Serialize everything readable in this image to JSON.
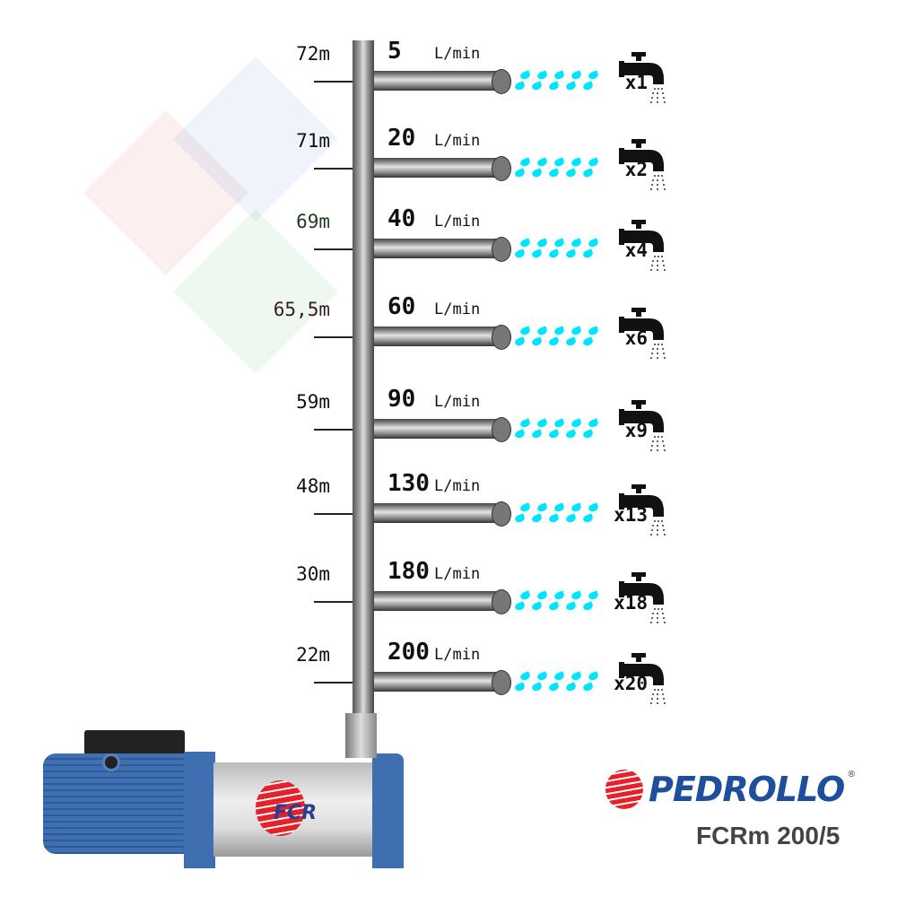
{
  "colors": {
    "water": "#00e5ff",
    "pipe": "#999999",
    "brand_blue": "#1e4f9c",
    "brand_red": "#e8202a",
    "pump_blue": "#3f6fb0"
  },
  "unit": "L/min",
  "rows": [
    {
      "height": "72m",
      "flow": "5",
      "taps": "x1",
      "height_color": "#111111"
    },
    {
      "height": "71m",
      "flow": "20",
      "taps": "x2",
      "height_color": "#111111"
    },
    {
      "height": "69m",
      "flow": "40",
      "taps": "x4",
      "height_color": "#1d3a1d"
    },
    {
      "height": "65,5m",
      "flow": "60",
      "taps": "x6",
      "height_color": "#3a1a22"
    },
    {
      "height": "59m",
      "flow": "90",
      "taps": "x9",
      "height_color": "#111111"
    },
    {
      "height": "48m",
      "flow": "130",
      "taps": "x13",
      "height_color": "#111111"
    },
    {
      "height": "30m",
      "flow": "180",
      "taps": "x18",
      "height_color": "#111111"
    },
    {
      "height": "22m",
      "flow": "200",
      "taps": "x20",
      "height_color": "#111111"
    }
  ],
  "pump": {
    "badge": "FCR"
  },
  "logo": {
    "brand": "PEDROLLO",
    "registered": "®",
    "model": "FCRm 200/5"
  }
}
